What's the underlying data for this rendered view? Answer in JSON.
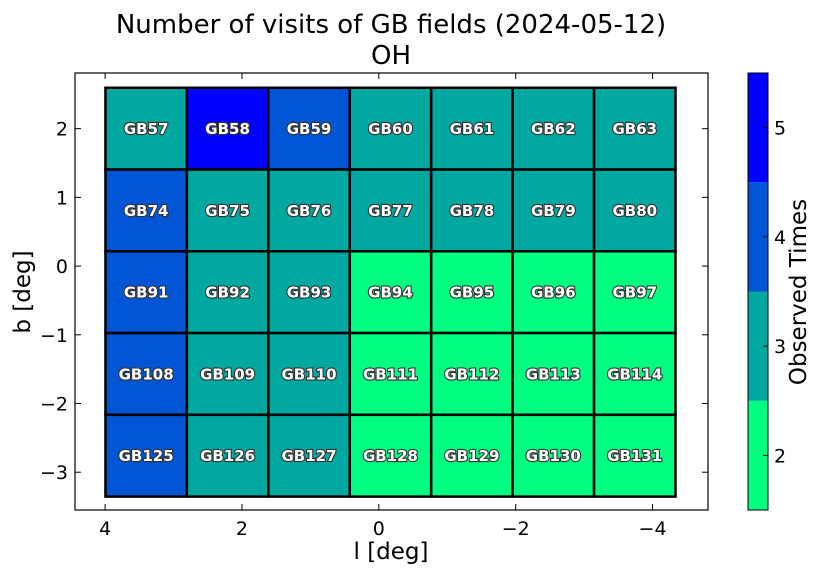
{
  "chart_data": {
    "type": "heatmap",
    "title": "Number of visits of GB fields (2024-05-12)",
    "subtitle": "OH",
    "xlabel": "l [deg]",
    "ylabel": "b [deg]",
    "xlim": [
      4.44,
      -4.81
    ],
    "ylim": [
      -3.55,
      2.81
    ],
    "xticks": [
      4,
      2,
      0,
      -2,
      -4
    ],
    "xtick_labels": [
      "4",
      "2",
      "0",
      "−2",
      "−4"
    ],
    "yticks": [
      2,
      1,
      0,
      -1,
      -2,
      -3
    ],
    "ytick_labels": [
      "2",
      "1",
      "0",
      "−1",
      "−2",
      "−3"
    ],
    "cell_width_deg": 1.19,
    "cell_height_deg": 1.19,
    "cells": [
      {
        "name": "GB57",
        "l": 3.4,
        "b": 2.0,
        "value": 3
      },
      {
        "name": "GB58",
        "l": 2.21,
        "b": 2.0,
        "value": 5
      },
      {
        "name": "GB59",
        "l": 1.02,
        "b": 2.0,
        "value": 4
      },
      {
        "name": "GB60",
        "l": -0.17,
        "b": 2.0,
        "value": 3
      },
      {
        "name": "GB61",
        "l": -1.36,
        "b": 2.0,
        "value": 3
      },
      {
        "name": "GB62",
        "l": -2.55,
        "b": 2.0,
        "value": 3
      },
      {
        "name": "GB63",
        "l": -3.74,
        "b": 2.0,
        "value": 3
      },
      {
        "name": "GB74",
        "l": 3.4,
        "b": 0.81,
        "value": 4
      },
      {
        "name": "GB75",
        "l": 2.21,
        "b": 0.81,
        "value": 3
      },
      {
        "name": "GB76",
        "l": 1.02,
        "b": 0.81,
        "value": 3
      },
      {
        "name": "GB77",
        "l": -0.17,
        "b": 0.81,
        "value": 3
      },
      {
        "name": "GB78",
        "l": -1.36,
        "b": 0.81,
        "value": 3
      },
      {
        "name": "GB79",
        "l": -2.55,
        "b": 0.81,
        "value": 3
      },
      {
        "name": "GB80",
        "l": -3.74,
        "b": 0.81,
        "value": 3
      },
      {
        "name": "GB91",
        "l": 3.4,
        "b": -0.38,
        "value": 4
      },
      {
        "name": "GB92",
        "l": 2.21,
        "b": -0.38,
        "value": 3
      },
      {
        "name": "GB93",
        "l": 1.02,
        "b": -0.38,
        "value": 3
      },
      {
        "name": "GB94",
        "l": -0.17,
        "b": -0.38,
        "value": 2
      },
      {
        "name": "GB95",
        "l": -1.36,
        "b": -0.38,
        "value": 2
      },
      {
        "name": "GB96",
        "l": -2.55,
        "b": -0.38,
        "value": 2
      },
      {
        "name": "GB97",
        "l": -3.74,
        "b": -0.38,
        "value": 2
      },
      {
        "name": "GB108",
        "l": 3.4,
        "b": -1.57,
        "value": 4
      },
      {
        "name": "GB109",
        "l": 2.21,
        "b": -1.57,
        "value": 3
      },
      {
        "name": "GB110",
        "l": 1.02,
        "b": -1.57,
        "value": 3
      },
      {
        "name": "GB111",
        "l": -0.17,
        "b": -1.57,
        "value": 2
      },
      {
        "name": "GB112",
        "l": -1.36,
        "b": -1.57,
        "value": 2
      },
      {
        "name": "GB113",
        "l": -2.55,
        "b": -1.57,
        "value": 2
      },
      {
        "name": "GB114",
        "l": -3.74,
        "b": -1.57,
        "value": 2
      },
      {
        "name": "GB125",
        "l": 3.4,
        "b": -2.76,
        "value": 4
      },
      {
        "name": "GB126",
        "l": 2.21,
        "b": -2.76,
        "value": 3
      },
      {
        "name": "GB127",
        "l": 1.02,
        "b": -2.76,
        "value": 3
      },
      {
        "name": "GB128",
        "l": -0.17,
        "b": -2.76,
        "value": 2
      },
      {
        "name": "GB129",
        "l": -1.36,
        "b": -2.76,
        "value": 2
      },
      {
        "name": "GB130",
        "l": -2.55,
        "b": -2.76,
        "value": 2
      },
      {
        "name": "GB131",
        "l": -3.74,
        "b": -2.76,
        "value": 2
      }
    ],
    "colorbar": {
      "label": "Observed Times",
      "range": [
        1.5,
        5.5
      ],
      "ticks": [
        2,
        3,
        4,
        5
      ],
      "tick_labels": [
        "2",
        "3",
        "4",
        "5"
      ],
      "colors": {
        "2": "#00ff80",
        "3": "#00a8a0",
        "4": "#0055d4",
        "5": "#0000ff"
      }
    }
  }
}
